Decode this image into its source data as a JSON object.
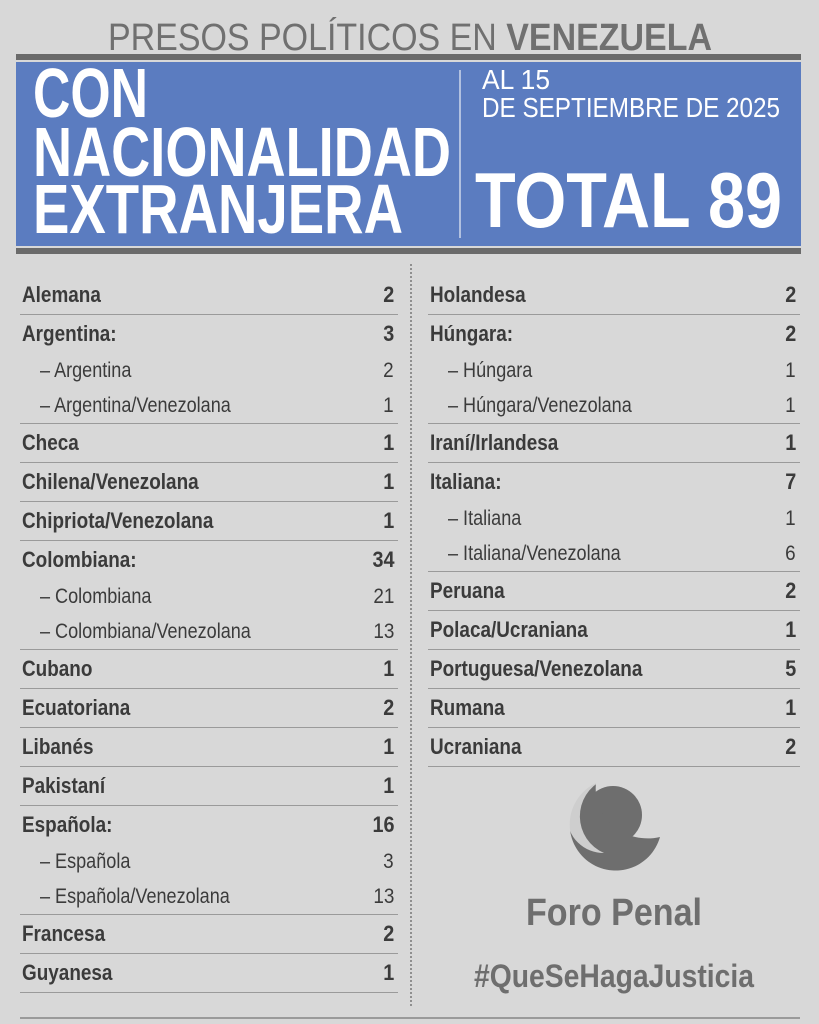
{
  "header": {
    "title_light": "PRESOS POLÍTICOS EN ",
    "title_bold": "VENEZUELA",
    "subtitle_lines": [
      "CON",
      "NACIONALIDAD",
      "EXTRANJERA"
    ],
    "date_lines": [
      "AL 15",
      "DE SEPTIEMBRE DE 2025"
    ],
    "total": "TOTAL 89"
  },
  "colors": {
    "banner": "#5b7cc0",
    "text": "#3b3b3b",
    "gray": "#707070",
    "background": "#d8d8d8"
  },
  "left_column": [
    {
      "label": "Alemana",
      "value": "2",
      "subs": []
    },
    {
      "label": "Argentina:",
      "value": "3",
      "subs": [
        {
          "label": "– Argentina",
          "value": "2"
        },
        {
          "label": "– Argentina/Venezolana",
          "value": "1"
        }
      ]
    },
    {
      "label": "Checa",
      "value": "1",
      "subs": []
    },
    {
      "label": "Chilena/Venezolana",
      "value": "1",
      "subs": []
    },
    {
      "label": "Chipriota/Venezolana",
      "value": "1",
      "subs": []
    },
    {
      "label": "Colombiana:",
      "value": "34",
      "subs": [
        {
          "label": "– Colombiana",
          "value": "21"
        },
        {
          "label": "– Colombiana/Venezolana",
          "value": "13"
        }
      ]
    },
    {
      "label": "Cubano",
      "value": "1",
      "subs": []
    },
    {
      "label": "Ecuatoriana",
      "value": "2",
      "subs": []
    },
    {
      "label": "Libanés",
      "value": "1",
      "subs": []
    },
    {
      "label": "Pakistaní",
      "value": "1",
      "subs": []
    },
    {
      "label": "Española:",
      "value": "16",
      "subs": [
        {
          "label": "– Española",
          "value": "3"
        },
        {
          "label": "– Española/Venezolana",
          "value": "13"
        }
      ]
    },
    {
      "label": "Francesa",
      "value": "2",
      "subs": []
    },
    {
      "label": "Guyanesa",
      "value": "1",
      "subs": []
    }
  ],
  "right_column": [
    {
      "label": "Holandesa",
      "value": "2",
      "subs": []
    },
    {
      "label": "Húngara:",
      "value": "2",
      "subs": [
        {
          "label": "– Húngara",
          "value": "1"
        },
        {
          "label": "– Húngara/Venezolana",
          "value": "1"
        }
      ]
    },
    {
      "label": "Iraní/Irlandesa",
      "value": "1",
      "subs": []
    },
    {
      "label": "Italiana:",
      "value": "7",
      "subs": [
        {
          "label": "– Italiana",
          "value": "1"
        },
        {
          "label": "– Italiana/Venezolana",
          "value": "6"
        }
      ]
    },
    {
      "label": "Peruana",
      "value": "2",
      "subs": []
    },
    {
      "label": "Polaca/Ucraniana",
      "value": "1",
      "subs": []
    },
    {
      "label": "Portuguesa/Venezolana",
      "value": "5",
      "subs": []
    },
    {
      "label": "Rumana",
      "value": "1",
      "subs": []
    },
    {
      "label": "Ucraniana",
      "value": "2",
      "subs": []
    }
  ],
  "footer": {
    "logo_name": "Foro Penal",
    "hashtag": "#QueSeHagaJusticia",
    "logo_icon": "crescent-circle-logo"
  }
}
